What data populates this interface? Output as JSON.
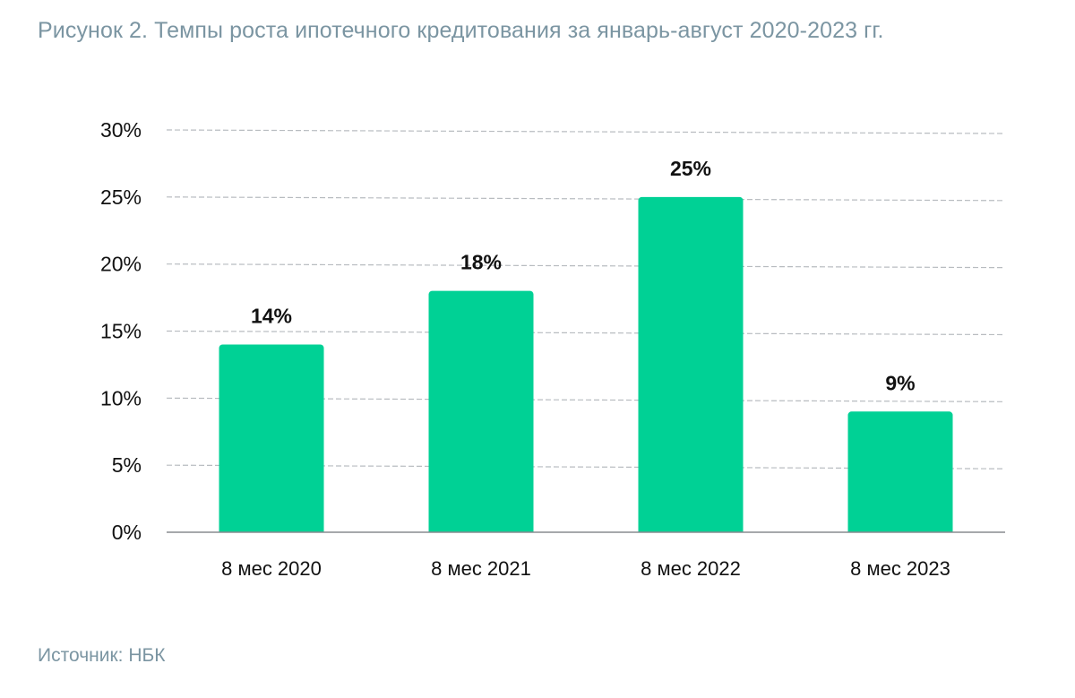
{
  "figure": {
    "title": "Рисунок 2. Темпы роста ипотечного кредитования за январь-август 2020-2023 гг.",
    "source": "Источник: НБК"
  },
  "colors": {
    "bar": "#00d195",
    "title_text": "#7b95a2",
    "gridline": "#b8bcc0",
    "axis_line": "#888c90",
    "text": "#111111"
  },
  "chart_data": {
    "type": "bar",
    "categories": [
      "8 мес 2020",
      "8 мес 2021",
      "8 мес 2022",
      "8 мес 2023"
    ],
    "values": [
      14,
      18,
      25,
      9
    ],
    "data_labels": [
      "14%",
      "18%",
      "25%",
      "9%"
    ],
    "y_ticks": [
      0,
      5,
      10,
      15,
      20,
      25,
      30
    ],
    "y_tick_labels": [
      "0%",
      "5%",
      "10%",
      "15%",
      "20%",
      "25%",
      "30%"
    ],
    "ylim": [
      0,
      30
    ],
    "unit": "%",
    "grid": "horizontal dashed",
    "legend": "none"
  }
}
